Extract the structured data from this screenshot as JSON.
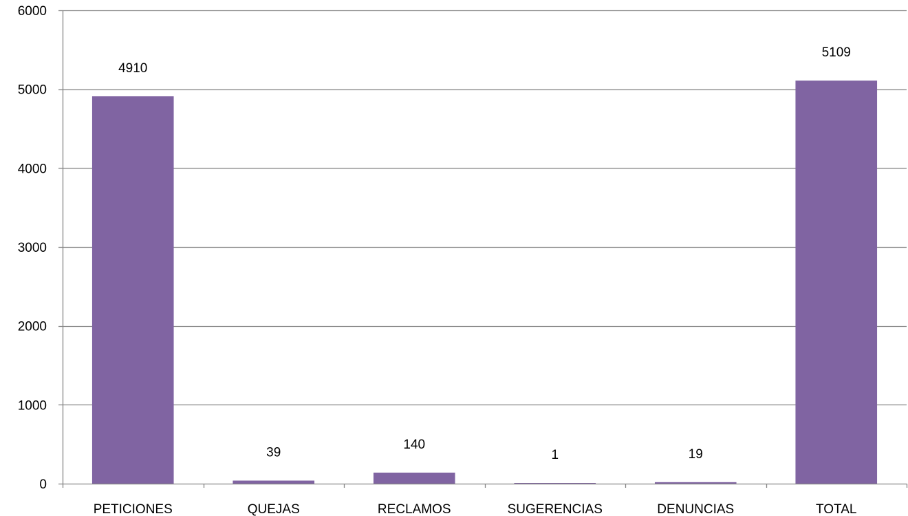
{
  "colors": {
    "bar": "#8064a2",
    "grid": "#868686",
    "axis": "#868686",
    "text": "#000000",
    "background": "#ffffff"
  },
  "chart_data": {
    "type": "bar",
    "title": "",
    "xlabel": "",
    "ylabel": "",
    "categories": [
      "PETICIONES",
      "QUEJAS",
      "RECLAMOS",
      "SUGERENCIAS",
      "DENUNCIAS",
      "TOTAL"
    ],
    "values": [
      4910,
      39,
      140,
      1,
      19,
      5109
    ],
    "data_labels": [
      "4910",
      "39",
      "140",
      "1",
      "19",
      "5109"
    ],
    "ylim": [
      0,
      6000
    ],
    "yticks": [
      0,
      1000,
      2000,
      3000,
      4000,
      5000,
      6000
    ],
    "ytick_labels": [
      "0",
      "1000",
      "2000",
      "3000",
      "4000",
      "5000",
      "6000"
    ],
    "grid": true,
    "legend": "none"
  }
}
